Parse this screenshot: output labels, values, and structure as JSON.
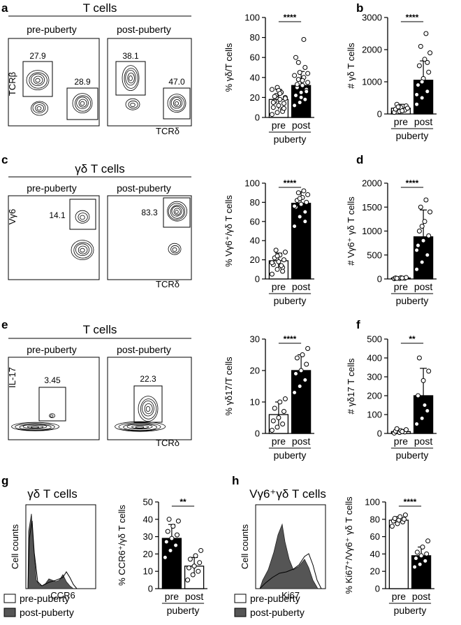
{
  "figure": {
    "panels": {
      "a": {
        "label": "a",
        "title": "T cells",
        "sub_left": "pre-puberty",
        "sub_right": "post-puberty",
        "y_axis": "TCRβ",
        "x_axis": "TCRδ",
        "gates_left": [
          "27.9",
          "28.9"
        ],
        "gates_right": [
          "38.1",
          "47.0"
        ]
      },
      "c": {
        "label": "c",
        "title": "γδ T cells",
        "sub_left": "pre-puberty",
        "sub_right": "post-puberty",
        "y_axis": "Vγ6",
        "x_axis": "TCRδ",
        "gates_left": [
          "14.1"
        ],
        "gates_right": [
          "83.3"
        ]
      },
      "e": {
        "label": "e",
        "title": "T cells",
        "sub_left": "pre-puberty",
        "sub_right": "post-puberty",
        "y_axis": "IL-17",
        "x_axis": "TCRδ",
        "gates_left": [
          "3.45"
        ],
        "gates_right": [
          "22.3"
        ]
      },
      "g": {
        "label": "g",
        "title": "γδ T cells",
        "y_axis": "Cell counts",
        "x_axis": "CCR6",
        "legend": [
          "pre-puberty",
          "post-puberty"
        ]
      },
      "h": {
        "label": "h",
        "title": "Vγ6⁺γδ T cells",
        "y_axis": "Cell counts",
        "x_axis": "Ki67",
        "legend": [
          "pre-puberty",
          "post-puberty"
        ]
      }
    }
  },
  "chart_data": [
    {
      "panel": "a",
      "type": "bar",
      "categories": [
        "pre",
        "post"
      ],
      "group_label": "puberty",
      "ylabel": "% γδ/T cells",
      "ylim": [
        0,
        100
      ],
      "yticks": [
        0,
        20,
        40,
        60,
        80,
        100
      ],
      "values": [
        18,
        32
      ],
      "errors": [
        10,
        14
      ],
      "significance": "****",
      "points": [
        [
          3,
          5,
          8,
          10,
          12,
          14,
          16,
          18,
          20,
          22,
          25,
          28,
          30,
          6,
          15,
          27,
          9,
          21,
          24,
          19
        ],
        [
          12,
          15,
          18,
          22,
          25,
          28,
          30,
          32,
          35,
          38,
          40,
          42,
          45,
          50,
          60,
          20,
          26,
          33,
          37,
          44,
          55,
          78
        ]
      ]
    },
    {
      "panel": "b",
      "type": "bar",
      "categories": [
        "pre",
        "post"
      ],
      "group_label": "puberty",
      "ylabel": "# γδ T cells",
      "ylim": [
        0,
        3000
      ],
      "yticks": [
        0,
        1000,
        2000,
        3000
      ],
      "values": [
        180,
        1050
      ],
      "errors": [
        120,
        600
      ],
      "significance": "****",
      "points": [
        [
          50,
          80,
          120,
          150,
          200,
          250,
          300,
          100,
          180,
          220
        ],
        [
          300,
          500,
          700,
          900,
          1100,
          1300,
          1500,
          1700,
          1900,
          2100,
          2500,
          600,
          1000,
          1600
        ]
      ]
    },
    {
      "panel": "c",
      "type": "bar",
      "categories": [
        "pre",
        "post"
      ],
      "group_label": "puberty",
      "ylabel": "% Vγ6⁺/γδ T cells",
      "ylim": [
        0,
        100
      ],
      "yticks": [
        0,
        20,
        40,
        60,
        80,
        100
      ],
      "values": [
        19,
        79
      ],
      "errors": [
        8,
        12
      ],
      "significance": "****",
      "points": [
        [
          5,
          10,
          12,
          15,
          18,
          20,
          22,
          25,
          28,
          30,
          14,
          17,
          24,
          8
        ],
        [
          55,
          65,
          70,
          75,
          78,
          80,
          82,
          85,
          88,
          90,
          92,
          76,
          84,
          60
        ]
      ]
    },
    {
      "panel": "d",
      "type": "bar",
      "categories": [
        "pre",
        "post"
      ],
      "group_label": "puberty",
      "ylabel": "# Vγ6⁺ γδ T cells",
      "ylim": [
        0,
        2000
      ],
      "yticks": [
        0,
        500,
        1000,
        1500,
        2000
      ],
      "values": [
        20,
        880
      ],
      "errors": [
        15,
        560
      ],
      "significance": "****",
      "points": [
        [
          5,
          10,
          15,
          20,
          25,
          30,
          12,
          18
        ],
        [
          200,
          350,
          500,
          700,
          800,
          900,
          1000,
          1200,
          1400,
          1500,
          1650,
          600,
          1100
        ]
      ]
    },
    {
      "panel": "e",
      "type": "bar",
      "categories": [
        "pre",
        "post"
      ],
      "group_label": "puberty",
      "ylabel": "% γδ17/T cells",
      "ylim": [
        0,
        30
      ],
      "yticks": [
        0,
        10,
        20,
        30
      ],
      "values": [
        6,
        20
      ],
      "errors": [
        4,
        5
      ],
      "significance": "****",
      "points": [
        [
          1,
          2,
          3,
          4,
          5,
          7,
          8,
          10,
          11
        ],
        [
          13,
          15,
          17,
          19,
          20,
          22,
          24,
          25,
          27
        ]
      ]
    },
    {
      "panel": "f",
      "type": "bar",
      "categories": [
        "pre",
        "post"
      ],
      "group_label": "puberty",
      "ylabel": "# γδ17 T cells",
      "ylim": [
        0,
        500
      ],
      "yticks": [
        0,
        100,
        200,
        300,
        400,
        500
      ],
      "values": [
        10,
        200
      ],
      "errors": [
        10,
        145
      ],
      "significance": "**",
      "points": [
        [
          2,
          5,
          8,
          12,
          15,
          20,
          25,
          10
        ],
        [
          50,
          80,
          120,
          200,
          280,
          330,
          400,
          150
        ]
      ]
    },
    {
      "panel": "g",
      "type": "bar",
      "categories": [
        "pre",
        "post"
      ],
      "group_label": "puberty",
      "ylabel": "% CCR6⁺/γδ T cells",
      "ylim": [
        0,
        50
      ],
      "yticks": [
        0,
        10,
        20,
        30,
        40,
        50
      ],
      "values": [
        29,
        13
      ],
      "errors": [
        8,
        5
      ],
      "significance": "**",
      "points": [
        [
          18,
          22,
          25,
          27,
          29,
          31,
          33,
          36,
          39,
          40
        ],
        [
          5,
          8,
          10,
          12,
          13,
          15,
          17,
          19,
          22
        ]
      ]
    },
    {
      "panel": "h",
      "type": "bar",
      "categories": [
        "pre",
        "post"
      ],
      "group_label": "puberty",
      "ylabel": "% Ki67⁺/Vγ6⁺ γδ T cells",
      "ylim": [
        0,
        100
      ],
      "yticks": [
        0,
        20,
        40,
        60,
        80,
        100
      ],
      "values": [
        79,
        38
      ],
      "errors": [
        4,
        10
      ],
      "significance": "****",
      "points": [
        [
          72,
          75,
          77,
          78,
          79,
          80,
          81,
          83,
          85
        ],
        [
          25,
          28,
          32,
          35,
          38,
          40,
          42,
          48,
          55
        ]
      ]
    }
  ]
}
